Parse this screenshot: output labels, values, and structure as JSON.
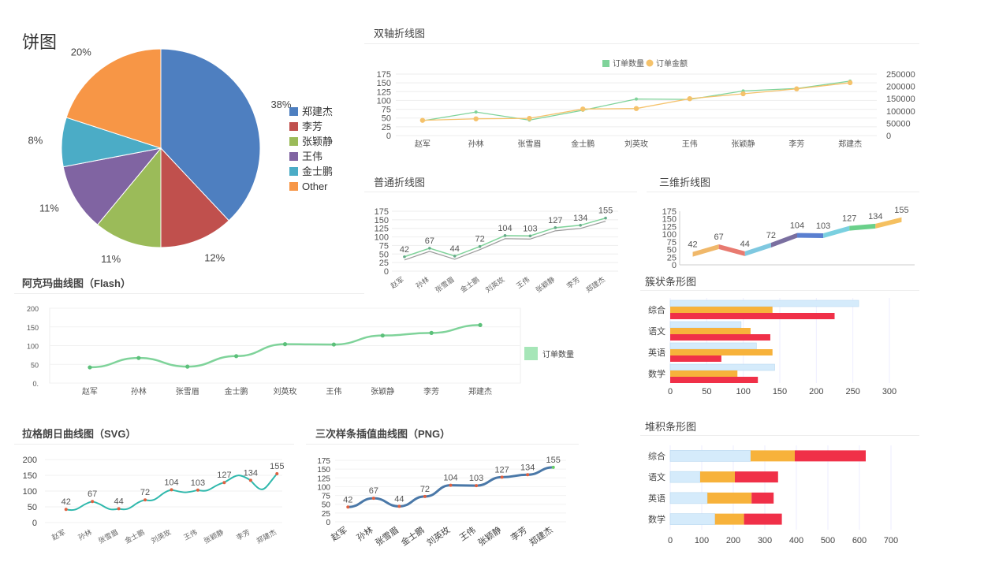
{
  "colors": {
    "pie": [
      "#4e7fc0",
      "#c0504d",
      "#9bbb59",
      "#8064a2",
      "#4bacc6",
      "#f79646"
    ],
    "green": "#7fd39a",
    "orange": "#f5c26b",
    "teal": "#2fb8ac",
    "blue": "#4a78a8",
    "lightblue": "#d5ebfb",
    "barorange": "#f7b23b",
    "red": "#f03048"
  },
  "categories": [
    "赵军",
    "孙林",
    "张雪眉",
    "金士鹏",
    "刘英玫",
    "王伟",
    "张颖静",
    "李芳",
    "郑建杰"
  ],
  "chart_data": [
    {
      "id": "pie",
      "type": "pie",
      "title": "饼图",
      "labels": [
        "郑建杰",
        "李芳",
        "张颖静",
        "王伟",
        "金士鹏",
        "Other"
      ],
      "values": [
        38,
        12,
        11,
        11,
        8,
        20
      ],
      "percent_labels": [
        "38%",
        "12%",
        "11%",
        "11%",
        "8%",
        "20%"
      ],
      "legend": "right"
    },
    {
      "id": "dual",
      "type": "line",
      "title": "双轴折线图",
      "categories": [
        "赵军",
        "孙林",
        "张雪眉",
        "金士鹏",
        "刘英玫",
        "王伟",
        "张颖静",
        "李芳",
        "郑建杰"
      ],
      "series": [
        {
          "name": "订单数量",
          "values": [
            42,
            67,
            44,
            72,
            104,
            103,
            127,
            134,
            155
          ],
          "axis": "left"
        },
        {
          "name": "订单金额",
          "values": [
            62000,
            68000,
            70000,
            108000,
            110000,
            150000,
            170000,
            190000,
            215000
          ],
          "axis": "right"
        }
      ],
      "left_ticks": [
        "0",
        "25",
        "50",
        "75",
        "100",
        "125",
        "150",
        "175"
      ],
      "right_ticks": [
        "0",
        "50000",
        "100000",
        "150000",
        "200000",
        "250000"
      ],
      "ylim_left": [
        0,
        175
      ],
      "ylim_right": [
        0,
        250000
      ],
      "legend": "top"
    },
    {
      "id": "normal",
      "type": "line",
      "title": "普通折线图",
      "categories": [
        "赵军",
        "孙林",
        "张雪眉",
        "金士鹏",
        "刘英玫",
        "王伟",
        "张颖静",
        "李芳",
        "郑建杰"
      ],
      "values": [
        42,
        67,
        44,
        72,
        104,
        103,
        127,
        134,
        155
      ],
      "y_ticks": [
        "0",
        "25",
        "50",
        "75",
        "100",
        "125",
        "150",
        "175"
      ],
      "ylim": [
        0,
        175
      ]
    },
    {
      "id": "three_d",
      "type": "line",
      "title": "三维折线图",
      "values": [
        42,
        67,
        44,
        72,
        104,
        103,
        127,
        134,
        155
      ],
      "y_ticks": [
        "0",
        "25",
        "50",
        "75",
        "100",
        "125",
        "150",
        "175"
      ],
      "ylim": [
        0,
        175
      ]
    },
    {
      "id": "akima",
      "type": "line",
      "title": "阿克玛曲线图（Flash）",
      "categories": [
        "赵军",
        "孙林",
        "张雪眉",
        "金士鹏",
        "刘英玫",
        "王伟",
        "张颖静",
        "李芳",
        "郑建杰"
      ],
      "series": [
        {
          "name": "订单数量",
          "values": [
            42,
            67,
            44,
            72,
            104,
            103,
            127,
            134,
            155
          ]
        }
      ],
      "y_ticks": [
        "0.",
        "50",
        "100",
        "150",
        "200"
      ],
      "ylim": [
        0,
        200
      ],
      "legend": "right"
    },
    {
      "id": "cluster",
      "type": "bar",
      "title": "簇状条形图",
      "categories": [
        "综合",
        "语文",
        "英语",
        "数学"
      ],
      "series": [
        {
          "values": [
            258,
            97,
            118,
            143
          ]
        },
        {
          "values": [
            140,
            110,
            140,
            92
          ]
        },
        {
          "values": [
            225,
            137,
            70,
            120
          ]
        }
      ],
      "x_ticks": [
        "0",
        "50",
        "100",
        "150",
        "200",
        "250",
        "300"
      ],
      "xlim": [
        0,
        300
      ]
    },
    {
      "id": "lagrange",
      "type": "line",
      "title": "拉格朗日曲线图（SVG）",
      "categories": [
        "赵军",
        "孙林",
        "张雪眉",
        "金士鹏",
        "刘英玫",
        "王伟",
        "张颖静",
        "李芳",
        "郑建杰"
      ],
      "values": [
        42,
        67,
        44,
        72,
        104,
        103,
        127,
        134,
        155
      ],
      "y_ticks": [
        "0",
        "50",
        "100",
        "150",
        "200"
      ],
      "ylim": [
        0,
        200
      ]
    },
    {
      "id": "spline",
      "type": "line",
      "title": "三次样条插值曲线图（PNG）",
      "categories": [
        "赵军",
        "孙林",
        "张雪眉",
        "金士鹏",
        "刘英玫",
        "王伟",
        "张颖静",
        "李芳",
        "郑建杰"
      ],
      "values": [
        42,
        67,
        44,
        72,
        104,
        103,
        127,
        134,
        155
      ],
      "y_ticks": [
        "0",
        "25",
        "50",
        "75",
        "100",
        "125",
        "150",
        "175"
      ],
      "ylim": [
        0,
        175
      ]
    },
    {
      "id": "stacked",
      "type": "bar",
      "title": "堆积条形图",
      "categories": [
        "综合",
        "语文",
        "英语",
        "数学"
      ],
      "series": [
        {
          "values": [
            255,
            95,
            118,
            142
          ]
        },
        {
          "values": [
            140,
            110,
            140,
            92
          ]
        },
        {
          "values": [
            225,
            137,
            70,
            120
          ]
        }
      ],
      "x_ticks": [
        "0",
        "100",
        "200",
        "300",
        "400",
        "500",
        "600",
        "700"
      ],
      "xlim": [
        0,
        700
      ]
    }
  ]
}
